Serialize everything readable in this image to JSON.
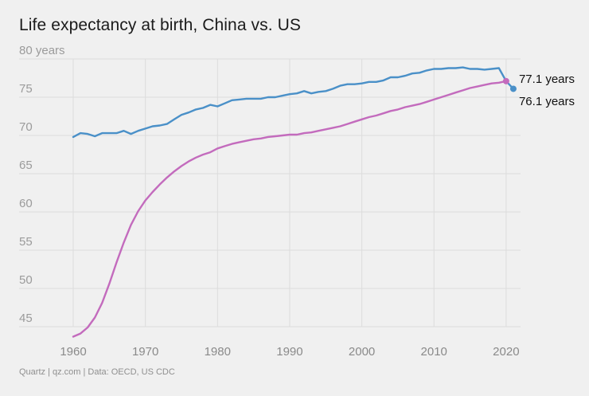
{
  "title": "Life expectancy at birth, China vs. US",
  "footer": "Quartz | qz.com | Data: OECD, US CDC",
  "chart_data": {
    "type": "line",
    "title": "Life expectancy at birth, China vs. US",
    "xlabel": "",
    "ylabel": "",
    "xlim": [
      1960,
      2021
    ],
    "ylim": [
      44,
      80
    ],
    "y_ticks": [
      45,
      50,
      55,
      60,
      65,
      70,
      75,
      80
    ],
    "y_tick_labels": [
      "45",
      "50",
      "55",
      "60",
      "65",
      "70",
      "75",
      "80 years"
    ],
    "x_ticks": [
      1960,
      1970,
      1980,
      1990,
      2000,
      2010,
      2020
    ],
    "x_tick_labels": [
      "1960",
      "1970",
      "1980",
      "1990",
      "2000",
      "2010",
      "2020"
    ],
    "grid": true,
    "legend": "none",
    "colors": {
      "us": "#4a90c8",
      "china": "#c36bbd"
    },
    "series": [
      {
        "key": "us",
        "color": "#4a90c8",
        "end_label": "76.1 years",
        "x": [
          1960,
          1961,
          1962,
          1963,
          1964,
          1965,
          1966,
          1967,
          1968,
          1969,
          1970,
          1971,
          1972,
          1973,
          1974,
          1975,
          1976,
          1977,
          1978,
          1979,
          1980,
          1981,
          1982,
          1983,
          1984,
          1985,
          1986,
          1987,
          1988,
          1989,
          1990,
          1991,
          1992,
          1993,
          1994,
          1995,
          1996,
          1997,
          1998,
          1999,
          2000,
          2001,
          2002,
          2003,
          2004,
          2005,
          2006,
          2007,
          2008,
          2009,
          2010,
          2011,
          2012,
          2013,
          2014,
          2015,
          2016,
          2017,
          2018,
          2019,
          2020,
          2021
        ],
        "values": [
          69.8,
          70.3,
          70.2,
          69.9,
          70.3,
          70.3,
          70.3,
          70.6,
          70.2,
          70.6,
          70.9,
          71.2,
          71.3,
          71.5,
          72.1,
          72.7,
          73.0,
          73.4,
          73.6,
          74.0,
          73.8,
          74.2,
          74.6,
          74.7,
          74.8,
          74.8,
          74.8,
          75.0,
          75.0,
          75.2,
          75.4,
          75.5,
          75.8,
          75.5,
          75.7,
          75.8,
          76.1,
          76.5,
          76.7,
          76.7,
          76.8,
          77.0,
          77.0,
          77.2,
          77.6,
          77.6,
          77.8,
          78.1,
          78.2,
          78.5,
          78.7,
          78.7,
          78.8,
          78.8,
          78.9,
          78.7,
          78.7,
          78.6,
          78.7,
          78.8,
          77.1,
          76.1
        ]
      },
      {
        "key": "china",
        "color": "#c36bbd",
        "end_label": "77.1 years",
        "x": [
          1960,
          1961,
          1962,
          1963,
          1964,
          1965,
          1966,
          1967,
          1968,
          1969,
          1970,
          1971,
          1972,
          1973,
          1974,
          1975,
          1976,
          1977,
          1978,
          1979,
          1980,
          1981,
          1982,
          1983,
          1984,
          1985,
          1986,
          1987,
          1988,
          1989,
          1990,
          1991,
          1992,
          1993,
          1994,
          1995,
          1996,
          1997,
          1998,
          1999,
          2000,
          2001,
          2002,
          2003,
          2004,
          2005,
          2006,
          2007,
          2008,
          2009,
          2010,
          2011,
          2012,
          2013,
          2014,
          2015,
          2016,
          2017,
          2018,
          2019,
          2020
        ],
        "values": [
          43.7,
          44.1,
          44.9,
          46.2,
          48.1,
          50.6,
          53.4,
          56.0,
          58.3,
          60.1,
          61.5,
          62.6,
          63.6,
          64.5,
          65.3,
          66.0,
          66.6,
          67.1,
          67.5,
          67.8,
          68.3,
          68.6,
          68.9,
          69.1,
          69.3,
          69.5,
          69.6,
          69.8,
          69.9,
          70.0,
          70.1,
          70.1,
          70.3,
          70.4,
          70.6,
          70.8,
          71.0,
          71.2,
          71.5,
          71.8,
          72.1,
          72.4,
          72.6,
          72.9,
          73.2,
          73.4,
          73.7,
          73.9,
          74.1,
          74.4,
          74.7,
          75.0,
          75.3,
          75.6,
          75.9,
          76.2,
          76.4,
          76.6,
          76.8,
          76.9,
          77.1
        ]
      }
    ]
  }
}
